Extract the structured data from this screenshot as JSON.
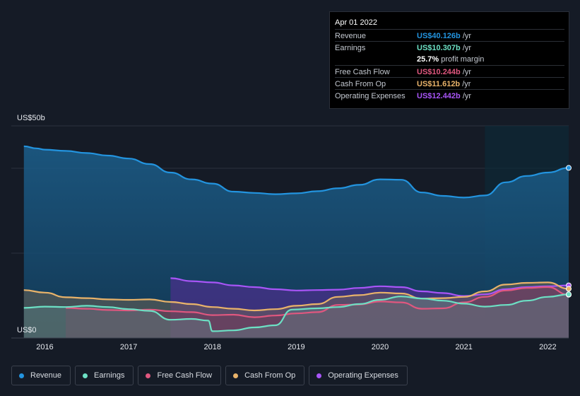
{
  "tooltip": {
    "date": "Apr 01 2022",
    "rows": [
      {
        "label": "Revenue",
        "value": "US$40.126b",
        "unit": " /yr",
        "color": "#2394df"
      },
      {
        "label": "Earnings",
        "value": "US$10.307b",
        "unit": " /yr",
        "color": "#6ce0c4"
      },
      {
        "label": "",
        "value": "25.7%",
        "unit": " profit margin",
        "color": "#ffffff"
      },
      {
        "label": "Free Cash Flow",
        "value": "US$10.244b",
        "unit": " /yr",
        "color": "#e0577f"
      },
      {
        "label": "Cash From Op",
        "value": "US$11.612b",
        "unit": " /yr",
        "color": "#e9b36a"
      },
      {
        "label": "Operating Expenses",
        "value": "US$12.442b",
        "unit": " /yr",
        "color": "#a855f7"
      }
    ]
  },
  "axis": {
    "y_top_label": "US$50b",
    "y_bottom_label": "US$0"
  },
  "legend": [
    {
      "label": "Revenue",
      "color": "#2394df"
    },
    {
      "label": "Earnings",
      "color": "#6ce0c4"
    },
    {
      "label": "Free Cash Flow",
      "color": "#e0577f"
    },
    {
      "label": "Cash From Op",
      "color": "#e9b36a"
    },
    {
      "label": "Operating Expenses",
      "color": "#a855f7"
    }
  ],
  "chart_data": {
    "type": "area",
    "title": "",
    "ylabel": "",
    "ylim": [
      0,
      50
    ],
    "x_range": [
      2015.6,
      2022.25
    ],
    "forecast_shade_from": 2021.25,
    "xticks": [
      {
        "value": 2016,
        "label": "2016"
      },
      {
        "value": 2017,
        "label": "2017"
      },
      {
        "value": 2018,
        "label": "2018"
      },
      {
        "value": 2019,
        "label": "2019"
      },
      {
        "value": 2020,
        "label": "2020"
      },
      {
        "value": 2021,
        "label": "2021"
      },
      {
        "value": 2022,
        "label": "2022"
      }
    ],
    "series": [
      {
        "name": "Revenue",
        "color": "#2394df",
        "x": [
          2015.75,
          2015.9,
          2016.0,
          2016.25,
          2016.5,
          2016.75,
          2017.0,
          2017.25,
          2017.5,
          2017.75,
          2018.0,
          2018.25,
          2018.5,
          2018.75,
          2019.0,
          2019.25,
          2019.5,
          2019.75,
          2020.0,
          2020.25,
          2020.5,
          2020.75,
          2021.0,
          2021.25,
          2021.5,
          2021.75,
          2022.0,
          2022.25
        ],
        "values": [
          45.2,
          44.7,
          44.4,
          44.1,
          43.6,
          43.0,
          42.3,
          41.0,
          39.0,
          37.4,
          36.4,
          34.5,
          34.2,
          33.9,
          34.1,
          34.6,
          35.3,
          36.1,
          37.4,
          37.3,
          34.3,
          33.5,
          33.1,
          33.6,
          36.7,
          38.2,
          39.0,
          40.1
        ]
      },
      {
        "name": "Operating Expenses",
        "color": "#a855f7",
        "x": [
          2017.5,
          2017.75,
          2018.0,
          2018.25,
          2018.5,
          2018.75,
          2019.0,
          2019.25,
          2019.5,
          2019.75,
          2020.0,
          2020.25,
          2020.5,
          2020.75,
          2021.0,
          2021.25,
          2021.5,
          2021.75,
          2022.0,
          2022.25
        ],
        "values": [
          14.1,
          13.4,
          13.1,
          12.4,
          12.0,
          11.5,
          11.2,
          11.3,
          11.4,
          11.8,
          12.2,
          12.0,
          11.0,
          10.6,
          9.9,
          10.3,
          11.5,
          12.0,
          12.2,
          12.4
        ]
      },
      {
        "name": "Cash From Op",
        "color": "#e9b36a",
        "x": [
          2015.75,
          2016.0,
          2016.25,
          2016.5,
          2016.75,
          2017.0,
          2017.25,
          2017.5,
          2017.75,
          2018.0,
          2018.25,
          2018.5,
          2018.75,
          2019.0,
          2019.25,
          2019.5,
          2019.75,
          2020.0,
          2020.25,
          2020.5,
          2020.75,
          2021.0,
          2021.25,
          2021.5,
          2021.75,
          2022.0,
          2022.25
        ],
        "values": [
          11.3,
          10.7,
          9.6,
          9.4,
          9.1,
          9.0,
          9.1,
          8.5,
          8.0,
          7.3,
          6.9,
          6.5,
          6.8,
          7.6,
          8.0,
          9.7,
          10.1,
          10.7,
          10.5,
          9.3,
          9.4,
          9.7,
          11.0,
          12.6,
          13.0,
          13.1,
          11.6
        ]
      },
      {
        "name": "Free Cash Flow",
        "color": "#e0577f",
        "x": [
          2016.25,
          2016.5,
          2016.75,
          2017.0,
          2017.25,
          2017.5,
          2017.75,
          2018.0,
          2018.25,
          2018.5,
          2018.75,
          2019.0,
          2019.25,
          2019.5,
          2019.75,
          2020.0,
          2020.25,
          2020.5,
          2020.75,
          2021.0,
          2021.25,
          2021.5,
          2021.75,
          2022.0,
          2022.25
        ],
        "values": [
          7.1,
          6.9,
          6.6,
          6.5,
          6.7,
          6.3,
          6.1,
          5.4,
          5.5,
          4.9,
          5.3,
          5.8,
          6.1,
          7.8,
          7.9,
          8.6,
          8.4,
          6.9,
          7.0,
          8.4,
          9.7,
          11.2,
          11.8,
          12.0,
          10.2
        ]
      },
      {
        "name": "Earnings",
        "color": "#6ce0c4",
        "x": [
          2015.75,
          2016.0,
          2016.25,
          2016.5,
          2016.75,
          2017.0,
          2017.25,
          2017.5,
          2017.75,
          2017.95,
          2018.0,
          2018.25,
          2018.5,
          2018.75,
          2018.95,
          2019.25,
          2019.5,
          2019.75,
          2020.0,
          2020.25,
          2020.5,
          2020.75,
          2021.0,
          2021.25,
          2021.5,
          2021.75,
          2022.0,
          2022.25
        ],
        "values": [
          7.1,
          7.4,
          7.3,
          7.6,
          7.3,
          6.8,
          6.4,
          4.3,
          4.5,
          4.1,
          1.6,
          1.8,
          2.5,
          3.0,
          6.7,
          7.0,
          7.3,
          8.0,
          9.0,
          9.8,
          9.3,
          8.8,
          8.1,
          7.4,
          7.8,
          8.8,
          9.7,
          10.3
        ]
      }
    ]
  }
}
